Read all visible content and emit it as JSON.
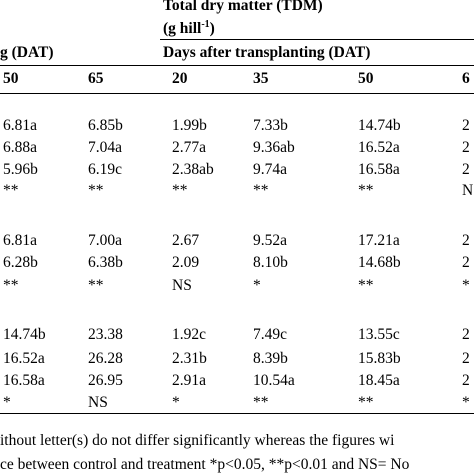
{
  "header": {
    "title": "Total dry matter (TDM)",
    "unit": "(g hill",
    "unit_sup": "-1",
    "unit_close": ")",
    "group_left": "g (DAT)",
    "group_right": "Days after transplanting (DAT)"
  },
  "table": {
    "columns": [
      "50",
      "65",
      "20",
      "35",
      "50",
      "6"
    ],
    "rows": [
      [
        "6.81a",
        "6.85b",
        "1.99b",
        "7.33b",
        "14.74b",
        "2"
      ],
      [
        "6.88a",
        "7.04a",
        "2.77a",
        "9.36ab",
        "16.52a",
        "2"
      ],
      [
        "5.96b",
        "6.19c",
        "2.38ab",
        "9.74a",
        "16.58a",
        "2"
      ],
      [
        "**",
        "**",
        "**",
        "**",
        "**",
        "N"
      ],
      [
        "6.81a",
        "7.00a",
        "2.67",
        "9.52a",
        "17.21a",
        "2"
      ],
      [
        "6.28b",
        "6.38b",
        "2.09",
        "8.10b",
        "14.68b",
        "2"
      ],
      [
        "**",
        "**",
        "NS",
        "*",
        "**",
        "*"
      ],
      [
        "14.74b",
        "23.38",
        "1.92c",
        "7.49c",
        "13.55c",
        "2"
      ],
      [
        "16.52a",
        "26.28",
        "2.31b",
        "8.39b",
        "15.83b",
        "2"
      ],
      [
        "16.58a",
        "26.95",
        "2.91a",
        "10.54a",
        "18.45a",
        "2"
      ],
      [
        "*",
        "NS",
        "*",
        "**",
        "**",
        "*"
      ]
    ]
  },
  "footnotes": [
    "ithout letter(s) do not differ significantly whereas the figures wi",
    "ce between control and treatment *p<0.05, **p<0.01 and NS= No"
  ]
}
